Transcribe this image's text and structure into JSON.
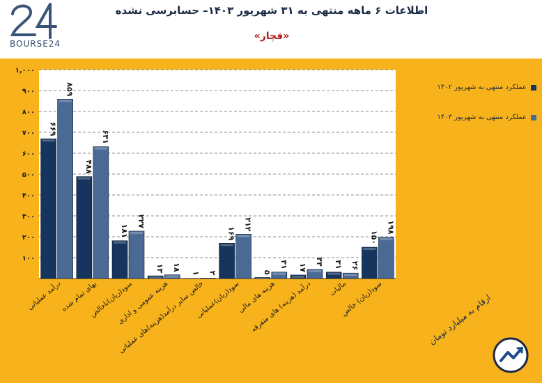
{
  "header": {
    "title": "اطلاعات ۶ ماهه منتهی به ۳۱ شهریور ۱۴۰۳– حسابرسی نشده",
    "subtitle": "«قچار»",
    "brand": "BOURSE24"
  },
  "colors": {
    "frame": "#f8b31c",
    "plot_bg": "#ffffff",
    "series_1402": "#16355e",
    "series_1403": "#4a6a95",
    "grid": "#1b1b1b"
  },
  "chart_data": {
    "type": "bar",
    "categories": [
      "درآمد عملیاتی",
      "بهای تمام شده",
      "سود(زیان)ناخالص",
      "هزینه عمومی و اداری",
      "خالص سایر درآمد(هزینه)های عملیاتی",
      "سود(زیان)عملیاتی",
      "هزینه های مالی",
      "درآمد (هزینه) های متفرقه",
      "مالیات",
      "سود(زیان) خالص"
    ],
    "series": [
      {
        "name": "عملکرد منتهی به شهریور ۱۴۰۲",
        "values": [
          669,
          488,
          181,
          13,
          1,
          169,
          5,
          17,
          31,
          150
        ],
        "labels": [
          "۶۶۹",
          "۴۸۸",
          "۱۸۱",
          "۱۳",
          "۱",
          "۱۶۹",
          "۵",
          "۱۷",
          "۳۱",
          "۱۵۰"
        ]
      },
      {
        "name": "عملکرد منتهی به شهریور ۱۴۰۳",
        "values": [
          859,
          631,
          227,
          18,
          2,
          212,
          31,
          44,
          26,
          198
        ],
        "labels": [
          "۸۵۹",
          "۶۳۱",
          "۲۲۷",
          "۱۸",
          "۲",
          "۲۱۲",
          "۳۱",
          "۴۴",
          "۲۶",
          "۱۹۸"
        ]
      }
    ],
    "ylim": [
      0,
      1000
    ],
    "yticks": [
      100,
      200,
      300,
      400,
      500,
      600,
      700,
      800,
      900,
      1000
    ],
    "ytick_labels": [
      "۱۰۰",
      "۲۰۰",
      "۳۰۰",
      "۴۰۰",
      "۵۰۰",
      "۶۰۰",
      "۷۰۰",
      "۸۰۰",
      "۹۰۰",
      "۱,۰۰۰"
    ],
    "grid": true,
    "legend": "right",
    "unit_note": "ارقام به میلیارد تومان"
  }
}
